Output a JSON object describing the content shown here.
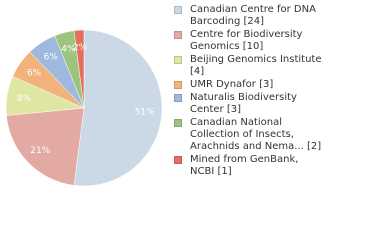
{
  "chart_data": {
    "type": "pie",
    "categories": [
      "Canadian Centre for DNA Barcoding [24]",
      "Centre for Biodiversity Genomics [10]",
      "Beijing Genomics Institute [4]",
      "UMR Dynafor [3]",
      "Naturalis Biodiversity Center [3]",
      "Canadian National Collection of Insects, Arachnids and Nema... [2]",
      "Mined from GenBank, NCBI [1]"
    ],
    "values": [
      51,
      21,
      8,
      6,
      6,
      4,
      2
    ],
    "value_labels": [
      "51%",
      "21%",
      "8%",
      "6%",
      "6%",
      "4%",
      "2%"
    ],
    "colors": [
      "#cbd8e5",
      "#e2aaa2",
      "#dfe6a4",
      "#f1b27b",
      "#9fb8de",
      "#9dc47f",
      "#e2705c"
    ],
    "legend": "right"
  }
}
